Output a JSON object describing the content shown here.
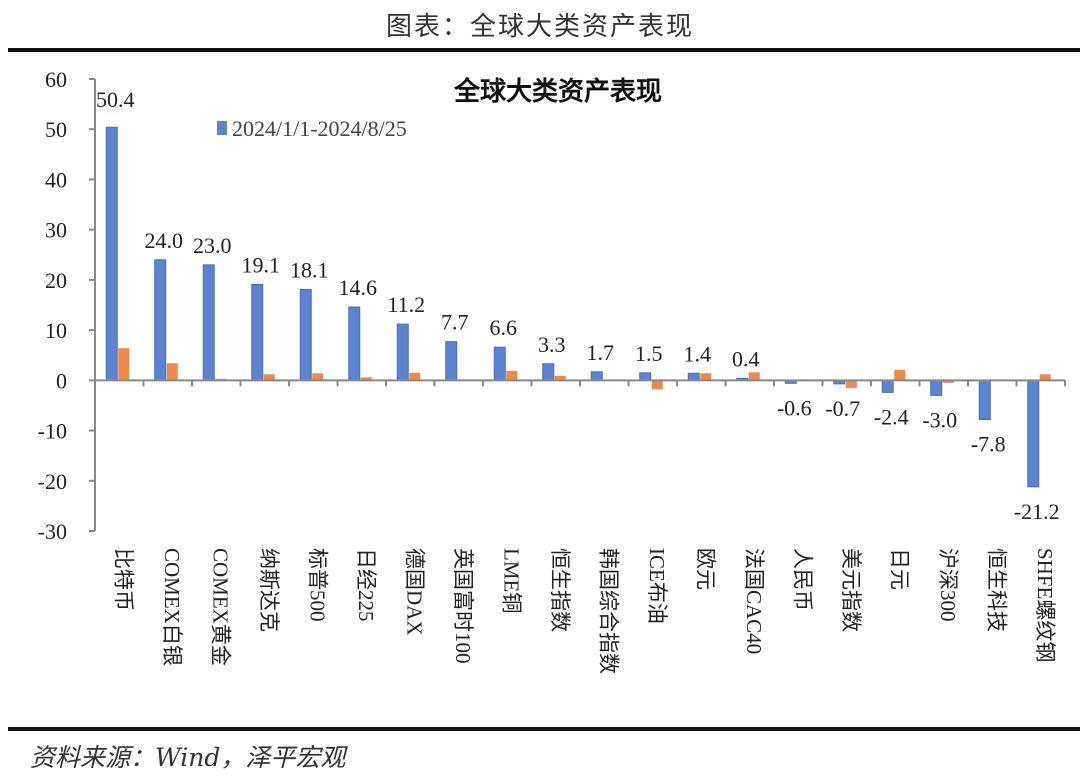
{
  "header": {
    "title": "图表：全球大类资产表现"
  },
  "source": "资料来源：Wind，泽平宏观",
  "chart_data": {
    "type": "bar",
    "title": "全球大类资产表现",
    "xlabel": "",
    "ylabel": "",
    "ylim": [
      -30,
      60
    ],
    "yticks": [
      60,
      50,
      40,
      30,
      20,
      10,
      0,
      -10,
      -20,
      -30
    ],
    "grid": false,
    "legend_position": "top-left",
    "categories": [
      "比特币",
      "COMEX白银",
      "COMEX黄金",
      "纳斯达克",
      "标普500",
      "日经225",
      "德国DAX",
      "英国富时100",
      "LME铜",
      "恒生指数",
      "韩国综合指数",
      "ICE布油",
      "欧元",
      "法国CAC40",
      "人民币",
      "美元指数",
      "日元",
      "沪深300",
      "恒生科技",
      "SHFE螺纹钢"
    ],
    "series": [
      {
        "name": "2024/1/1-2024/8/25",
        "color": "#5B83CF",
        "values": [
          50.4,
          24.0,
          23.0,
          19.1,
          18.1,
          14.6,
          11.2,
          7.7,
          6.6,
          3.3,
          1.7,
          1.5,
          1.4,
          0.4,
          -0.6,
          -0.7,
          -2.4,
          -3.0,
          -7.8,
          -21.2
        ],
        "labels": [
          "50.4",
          "24.0",
          "23.0",
          "19.1",
          "18.1",
          "14.6",
          "11.2",
          "7.7",
          "6.6",
          "3.3",
          "1.7",
          "1.5",
          "1.4",
          "0.4",
          "-0.6",
          "-0.7",
          "-2.4",
          "-3.0",
          "-7.8",
          "-21.2"
        ]
      },
      {
        "color": "#ED8A4B",
        "values": [
          6.4,
          3.4,
          0.3,
          1.2,
          1.4,
          0.6,
          1.5,
          0,
          1.9,
          0.9,
          0,
          -1.8,
          1.4,
          1.6,
          0.2,
          -1.5,
          2.1,
          -0.5,
          0,
          1.2
        ]
      }
    ]
  }
}
